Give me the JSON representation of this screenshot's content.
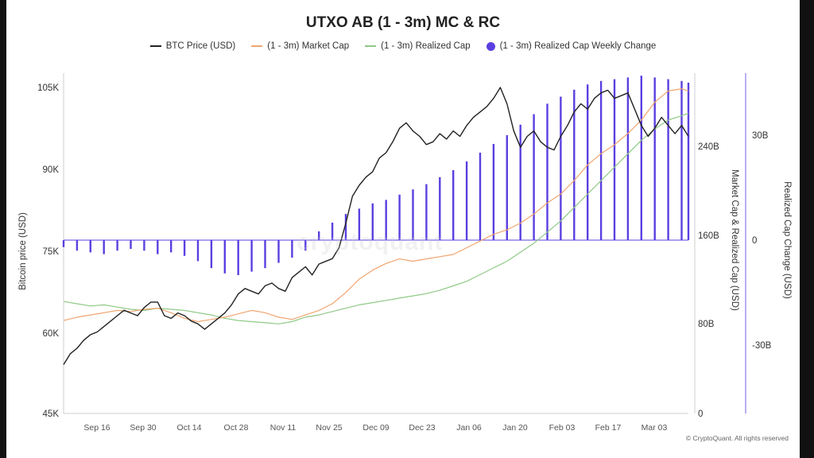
{
  "chart_data": {
    "type": "bar+line",
    "title": "UTXO AB (1 - 3m) MC & RC",
    "legend": [
      {
        "label": "BTC Price (USD)",
        "color": "#222222",
        "shape": "line"
      },
      {
        "label": "(1 - 3m) Market Cap",
        "color": "#f0a46e",
        "shape": "line"
      },
      {
        "label": "(1 - 3m) Realized Cap",
        "color": "#8fc986",
        "shape": "line"
      },
      {
        "label": "(1 - 3m) Realized Cap Weekly Change",
        "color": "#5b3fe0",
        "shape": "dot"
      }
    ],
    "legend_position": "top-center",
    "x_ticks": [
      "Sep 16",
      "Sep 30",
      "Oct 14",
      "Oct 28",
      "Nov 11",
      "Nov 25",
      "Dec 09",
      "Dec 23",
      "Jan 06",
      "Jan 20",
      "Feb 03",
      "Feb 17",
      "Mar 03"
    ],
    "left_axis": {
      "label": "Bitcoin price (USD)",
      "ticks": [
        "105K",
        "90K",
        "75K",
        "60K",
        "45K"
      ],
      "range": [
        45000,
        105000
      ]
    },
    "mid_axis": {
      "label": "Market Cap & Realized Cap (USD)",
      "ticks": [
        "240B",
        "160B",
        "80B",
        "0"
      ],
      "range": [
        0,
        240000000000
      ]
    },
    "right_axis": {
      "label": "Realized Cap Change (USD)",
      "ticks": [
        "30B",
        "0",
        "-30B"
      ],
      "range": [
        -30000000000,
        30000000000
      ]
    },
    "x_day_range": [
      0,
      186
    ],
    "btc_price": [
      [
        0,
        54000
      ],
      [
        2,
        56000
      ],
      [
        4,
        57000
      ],
      [
        6,
        58500
      ],
      [
        8,
        59500
      ],
      [
        10,
        60000
      ],
      [
        12,
        61000
      ],
      [
        14,
        62000
      ],
      [
        16,
        63000
      ],
      [
        18,
        64000
      ],
      [
        20,
        63500
      ],
      [
        22,
        63000
      ],
      [
        24,
        64500
      ],
      [
        26,
        65500
      ],
      [
        28,
        65500
      ],
      [
        30,
        63000
      ],
      [
        32,
        62500
      ],
      [
        34,
        63500
      ],
      [
        36,
        63000
      ],
      [
        38,
        62000
      ],
      [
        40,
        61500
      ],
      [
        42,
        60500
      ],
      [
        44,
        61500
      ],
      [
        46,
        62500
      ],
      [
        48,
        63500
      ],
      [
        50,
        65000
      ],
      [
        52,
        67000
      ],
      [
        54,
        68000
      ],
      [
        56,
        67500
      ],
      [
        58,
        67000
      ],
      [
        60,
        68500
      ],
      [
        62,
        69000
      ],
      [
        64,
        68000
      ],
      [
        66,
        67500
      ],
      [
        68,
        70000
      ],
      [
        70,
        71000
      ],
      [
        72,
        72000
      ],
      [
        74,
        70500
      ],
      [
        76,
        72500
      ],
      [
        78,
        73000
      ],
      [
        80,
        73500
      ],
      [
        82,
        75500
      ],
      [
        84,
        80000
      ],
      [
        86,
        85000
      ],
      [
        88,
        87000
      ],
      [
        90,
        88500
      ],
      [
        92,
        89500
      ],
      [
        94,
        92000
      ],
      [
        96,
        93000
      ],
      [
        98,
        95000
      ],
      [
        100,
        97500
      ],
      [
        102,
        98500
      ],
      [
        104,
        97000
      ],
      [
        106,
        96000
      ],
      [
        108,
        94500
      ],
      [
        110,
        95000
      ],
      [
        112,
        96500
      ],
      [
        114,
        95500
      ],
      [
        116,
        97000
      ],
      [
        118,
        96000
      ],
      [
        120,
        98000
      ],
      [
        122,
        99500
      ],
      [
        124,
        100500
      ],
      [
        126,
        101500
      ],
      [
        128,
        103000
      ],
      [
        130,
        105000
      ],
      [
        132,
        102000
      ],
      [
        134,
        97000
      ],
      [
        136,
        94000
      ],
      [
        138,
        96000
      ],
      [
        140,
        97000
      ],
      [
        142,
        95000
      ],
      [
        144,
        94000
      ],
      [
        146,
        93500
      ],
      [
        148,
        96000
      ],
      [
        150,
        98000
      ],
      [
        152,
        100500
      ],
      [
        154,
        102000
      ],
      [
        156,
        101000
      ],
      [
        158,
        103000
      ],
      [
        160,
        104000
      ],
      [
        162,
        104500
      ],
      [
        164,
        103000
      ],
      [
        166,
        103500
      ],
      [
        168,
        104000
      ],
      [
        170,
        101000
      ],
      [
        172,
        98000
      ],
      [
        174,
        96000
      ],
      [
        176,
        97500
      ],
      [
        178,
        99500
      ],
      [
        180,
        98000
      ],
      [
        182,
        96500
      ],
      [
        184,
        98000
      ],
      [
        186,
        96000
      ]
    ],
    "market_cap_b": [
      [
        0,
        83
      ],
      [
        4,
        86
      ],
      [
        8,
        88
      ],
      [
        12,
        90
      ],
      [
        16,
        92
      ],
      [
        20,
        91
      ],
      [
        24,
        93
      ],
      [
        28,
        94
      ],
      [
        32,
        90
      ],
      [
        36,
        85
      ],
      [
        40,
        82
      ],
      [
        44,
        84
      ],
      [
        48,
        86
      ],
      [
        52,
        89
      ],
      [
        56,
        92
      ],
      [
        60,
        90
      ],
      [
        64,
        86
      ],
      [
        68,
        84
      ],
      [
        72,
        88
      ],
      [
        76,
        92
      ],
      [
        80,
        98
      ],
      [
        84,
        108
      ],
      [
        88,
        120
      ],
      [
        92,
        128
      ],
      [
        96,
        134
      ],
      [
        100,
        138
      ],
      [
        104,
        136
      ],
      [
        108,
        138
      ],
      [
        112,
        140
      ],
      [
        116,
        142
      ],
      [
        120,
        148
      ],
      [
        124,
        154
      ],
      [
        128,
        160
      ],
      [
        132,
        164
      ],
      [
        136,
        170
      ],
      [
        140,
        178
      ],
      [
        144,
        188
      ],
      [
        148,
        196
      ],
      [
        152,
        208
      ],
      [
        156,
        222
      ],
      [
        160,
        232
      ],
      [
        164,
        240
      ],
      [
        168,
        250
      ],
      [
        172,
        262
      ],
      [
        176,
        278
      ],
      [
        180,
        288
      ],
      [
        184,
        290
      ],
      [
        186,
        288
      ]
    ],
    "realized_cap_b": [
      [
        0,
        100
      ],
      [
        4,
        98
      ],
      [
        8,
        96
      ],
      [
        12,
        97
      ],
      [
        16,
        95
      ],
      [
        20,
        93
      ],
      [
        24,
        92
      ],
      [
        28,
        94
      ],
      [
        32,
        93
      ],
      [
        36,
        92
      ],
      [
        40,
        90
      ],
      [
        44,
        88
      ],
      [
        48,
        85
      ],
      [
        52,
        83
      ],
      [
        56,
        82
      ],
      [
        60,
        81
      ],
      [
        64,
        80
      ],
      [
        68,
        82
      ],
      [
        72,
        86
      ],
      [
        76,
        88
      ],
      [
        80,
        91
      ],
      [
        84,
        94
      ],
      [
        88,
        97
      ],
      [
        92,
        99
      ],
      [
        96,
        101
      ],
      [
        100,
        103
      ],
      [
        104,
        105
      ],
      [
        108,
        107
      ],
      [
        112,
        110
      ],
      [
        116,
        114
      ],
      [
        120,
        118
      ],
      [
        124,
        124
      ],
      [
        128,
        130
      ],
      [
        132,
        136
      ],
      [
        136,
        144
      ],
      [
        140,
        152
      ],
      [
        144,
        162
      ],
      [
        148,
        172
      ],
      [
        152,
        184
      ],
      [
        156,
        196
      ],
      [
        160,
        208
      ],
      [
        164,
        220
      ],
      [
        168,
        232
      ],
      [
        172,
        244
      ],
      [
        176,
        254
      ],
      [
        180,
        262
      ],
      [
        184,
        266
      ],
      [
        186,
        268
      ]
    ],
    "weekly_change_b": [
      [
        0,
        -2.0
      ],
      [
        4,
        -3.0
      ],
      [
        8,
        -3.5
      ],
      [
        12,
        -4.0
      ],
      [
        16,
        -3.0
      ],
      [
        20,
        -2.5
      ],
      [
        24,
        -3.0
      ],
      [
        28,
        -4.0
      ],
      [
        32,
        -3.5
      ],
      [
        36,
        -4.5
      ],
      [
        40,
        -6.0
      ],
      [
        44,
        -8.0
      ],
      [
        48,
        -9.5
      ],
      [
        52,
        -10.0
      ],
      [
        56,
        -9.0
      ],
      [
        60,
        -8.0
      ],
      [
        64,
        -6.5
      ],
      [
        68,
        -5.0
      ],
      [
        72,
        -3.0
      ],
      [
        76,
        2.5
      ],
      [
        80,
        5.0
      ],
      [
        84,
        7.5
      ],
      [
        88,
        9.0
      ],
      [
        92,
        10.5
      ],
      [
        96,
        11.5
      ],
      [
        100,
        13.0
      ],
      [
        104,
        14.5
      ],
      [
        108,
        16.0
      ],
      [
        112,
        18.0
      ],
      [
        116,
        20.0
      ],
      [
        120,
        22.5
      ],
      [
        124,
        25.0
      ],
      [
        128,
        27.5
      ],
      [
        132,
        30.0
      ],
      [
        136,
        33.0
      ],
      [
        140,
        36.0
      ],
      [
        144,
        39.0
      ],
      [
        148,
        41.0
      ],
      [
        152,
        43.0
      ],
      [
        156,
        44.5
      ],
      [
        160,
        45.5
      ],
      [
        164,
        46.0
      ],
      [
        168,
        46.5
      ],
      [
        172,
        47.0
      ],
      [
        176,
        46.5
      ],
      [
        180,
        46.0
      ],
      [
        184,
        45.5
      ],
      [
        186,
        45.0
      ]
    ],
    "grid": false,
    "watermark": "cryptoquant"
  },
  "credit": "© CryptoQuant. All rights reserved"
}
